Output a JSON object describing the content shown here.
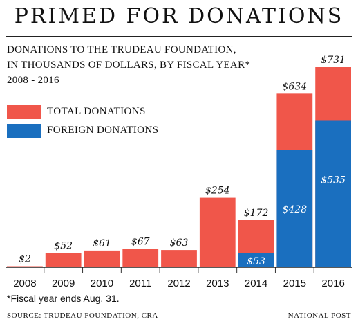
{
  "headline": "PRIMED FOR DONATIONS",
  "subtitle_lines": [
    "DONATIONS TO THE TRUDEAU FOUNDATION,",
    "IN THOUSANDS OF DOLLARS, BY FISCAL YEAR*",
    "2008 - 2016"
  ],
  "footnote": "*Fiscal year ends Aug. 31.",
  "source": "SOURCE: TRUDEAU FOUNDATION, CRA",
  "credit": "NATIONAL POST",
  "colors": {
    "total": "#f0564a",
    "foreign": "#1a6fbf"
  },
  "chart_data": {
    "type": "bar",
    "categories": [
      "2008",
      "2009",
      "2010",
      "2011",
      "2012",
      "2013",
      "2014",
      "2015",
      "2016"
    ],
    "series": [
      {
        "name": "TOTAL DONATIONS",
        "values": [
          2,
          52,
          61,
          67,
          63,
          254,
          172,
          634,
          731
        ],
        "labels": [
          "$2",
          "$52",
          "$61",
          "$67",
          "$63",
          "$254",
          "$172",
          "$634",
          "$731"
        ]
      },
      {
        "name": "FOREIGN DONATIONS",
        "values": [
          0,
          0,
          0,
          0,
          0,
          0,
          53,
          428,
          535
        ],
        "labels": [
          "",
          "",
          "",
          "",
          "",
          "",
          "$53",
          "$428",
          "$535"
        ]
      }
    ],
    "ylim": [
      0,
      731
    ],
    "legend": "top-left",
    "grid": false
  }
}
